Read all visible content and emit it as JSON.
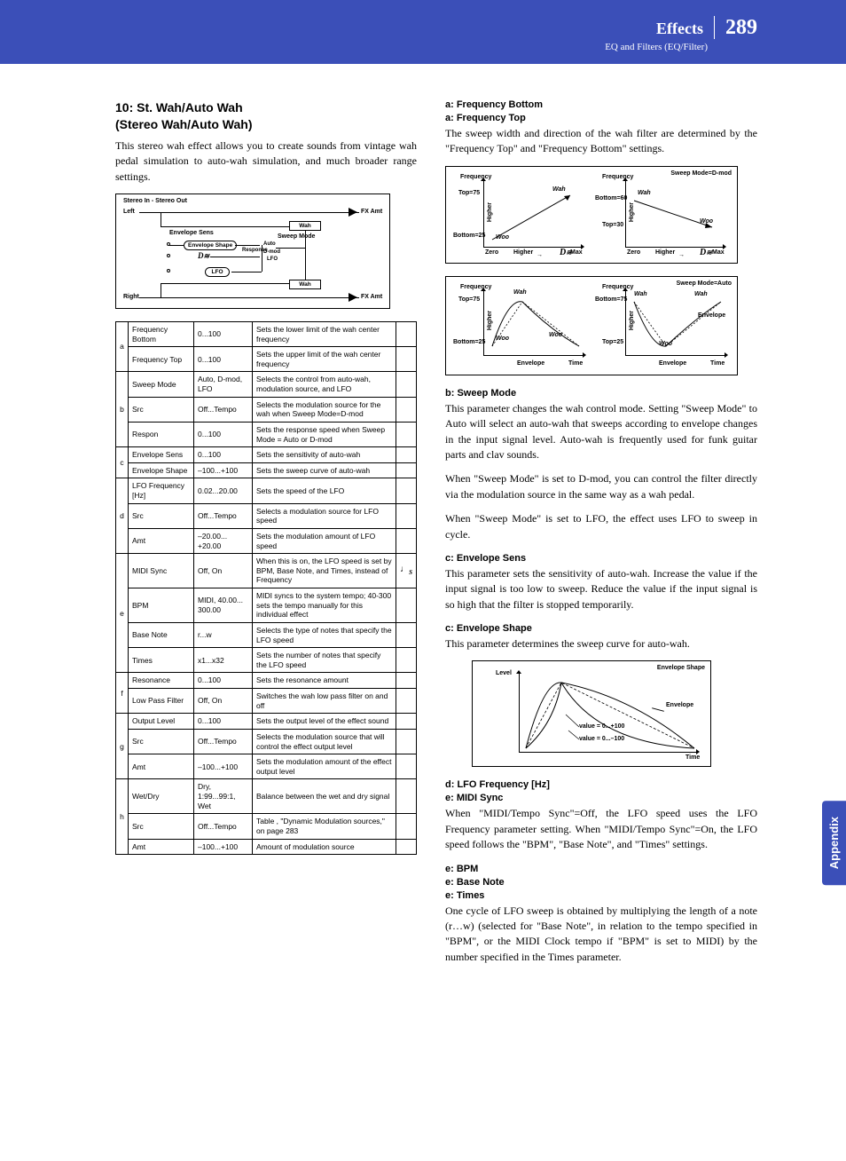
{
  "header": {
    "title": "Effects",
    "page_number": "289",
    "subtitle": "EQ and Filters (EQ/Filter)"
  },
  "sidetab": "Appendix",
  "left": {
    "section_title": "10: St. Wah/Auto Wah\n(Stereo Wah/Auto Wah)",
    "intro": "This stereo wah effect allows you to create sounds from vintage wah pedal simulation to auto-wah simulation, and much broader range settings.",
    "sigflow": {
      "title": "Stereo In - Stereo Out",
      "left": "Left",
      "right": "Right",
      "fxamt": "FX Amt",
      "wah": "Wah",
      "env_sens": "Envelope Sens",
      "env_shape": "Envelope Shape",
      "response": "Response",
      "sweep_mode": "Sweep Mode",
      "auto": "Auto",
      "dmod": "D-mod",
      "lfo_sw": "LFO",
      "lfo_box": "LFO"
    },
    "table": [
      {
        "g": "a",
        "rows": [
          {
            "name": "Frequency Bottom",
            "range": "0...100",
            "desc": "Sets the lower limit of the wah center frequency",
            "icon": ""
          },
          {
            "name": "Frequency Top",
            "range": "0...100",
            "desc": "Sets the upper limit of the wah center frequency",
            "icon": ""
          }
        ]
      },
      {
        "g": "b",
        "rows": [
          {
            "name": "Sweep Mode",
            "range": "Auto, D-mod, LFO",
            "desc": "Selects the control from auto-wah, modulation source, and LFO",
            "icon": ""
          },
          {
            "name": "Src",
            "range": "Off...Tempo",
            "desc": "Selects the modulation source for the wah when Sweep Mode=D-mod",
            "icon": ""
          },
          {
            "name": "Respon",
            "range": "0...100",
            "desc": "Sets the response speed when Sweep Mode = Auto or D-mod",
            "icon": ""
          }
        ]
      },
      {
        "g": "c",
        "rows": [
          {
            "name": "Envelope Sens",
            "range": "0...100",
            "desc": "Sets the sensitivity of auto-wah",
            "icon": ""
          },
          {
            "name": "Envelope Shape",
            "range": "–100...+100",
            "desc": "Sets the sweep curve of auto-wah",
            "icon": ""
          }
        ]
      },
      {
        "g": "d",
        "rows": [
          {
            "name": "LFO Frequency [Hz]",
            "range": "0.02...20.00",
            "desc": "Sets the speed of the LFO",
            "icon": ""
          },
          {
            "name": "Src",
            "range": "Off...Tempo",
            "desc": "Selects a modulation source for LFO speed",
            "icon": ""
          },
          {
            "name": "Amt",
            "range": "–20.00...\n+20.00",
            "desc": "Sets the modulation amount of LFO speed",
            "icon": ""
          }
        ]
      },
      {
        "g": "e",
        "rows": [
          {
            "name": "MIDI Sync",
            "range": "Off, On",
            "desc": "When this is on, the LFO speed is set by BPM, Base Note, and Times, instead of Frequency",
            "icon": "sync"
          },
          {
            "name": "BPM",
            "range": "MIDI, 40.00... 300.00",
            "desc": "MIDI syncs to the system tempo; 40-300 sets the tempo manually for this individual effect",
            "icon": ""
          },
          {
            "name": "Base Note",
            "range": "r...w",
            "desc": "Selects the type of notes that specify the LFO speed",
            "icon": ""
          },
          {
            "name": "Times",
            "range": "x1...x32",
            "desc": "Sets the number of notes that specify the LFO speed",
            "icon": ""
          }
        ]
      },
      {
        "g": "f",
        "rows": [
          {
            "name": "Resonance",
            "range": "0...100",
            "desc": "Sets the resonance amount",
            "icon": ""
          },
          {
            "name": "Low Pass Filter",
            "range": "Off, On",
            "desc": "Switches the wah low pass filter on and off",
            "icon": ""
          }
        ]
      },
      {
        "g": "g",
        "rows": [
          {
            "name": "Output Level",
            "range": "0...100",
            "desc": "Sets the output level of the effect sound",
            "icon": ""
          },
          {
            "name": "Src",
            "range": "Off...Tempo",
            "desc": "Selects the modulation source that will control the effect output level",
            "icon": ""
          },
          {
            "name": "Amt",
            "range": "–100...+100",
            "desc": "Sets the modulation amount of the effect output level",
            "icon": ""
          }
        ]
      },
      {
        "g": "h",
        "rows": [
          {
            "name": "Wet/Dry",
            "range": "Dry, 1:99...99:1, Wet",
            "desc": "Balance between the wet and dry signal",
            "icon": ""
          },
          {
            "name": "Src",
            "range": "Off...Tempo",
            "desc": "Table , \"Dynamic Modulation sources,\" on page 283",
            "icon": ""
          },
          {
            "name": "Amt",
            "range": "–100...+100",
            "desc": "Amount of modulation source",
            "icon": ""
          }
        ]
      }
    ]
  },
  "right": {
    "h_freq_bottom": "a: Frequency Bottom",
    "h_freq_top": "a: Frequency Top",
    "p_freq": "The sweep width and direction of the wah filter are determined by the \"Frequency Top\" and \"Frequency Bottom\" settings.",
    "chart1": {
      "mode_label": "Sweep Mode=D-mod",
      "frequency": "Frequency",
      "top75": "Top=75",
      "bottom25": "Bottom=25",
      "bottom60": "Bottom=60",
      "top30": "Top=30",
      "wah": "Wah",
      "woo": "Woo",
      "higher": "Higher",
      "zero": "Zero",
      "max": "Max",
      "dmod": "D"
    },
    "chart2": {
      "mode_label": "Sweep Mode=Auto",
      "frequency": "Frequency",
      "top75": "Top=75",
      "bottom25": "Bottom=25",
      "bottom75": "Bottom=75",
      "top25": "Top=25",
      "wah": "Wah",
      "woo": "Woo",
      "envelope": "Envelope",
      "time": "Time"
    },
    "h_sweep": "b: Sweep Mode",
    "p_sweep1": "This parameter changes the wah control mode. Setting \"Sweep Mode\" to Auto will select an auto-wah that sweeps according to envelope changes in the input signal level. Auto-wah is frequently used for funk guitar parts and clav sounds.",
    "p_sweep2": "When \"Sweep Mode\" is set to D-mod, you can control the filter directly via the modulation source in the same way as a wah pedal.",
    "p_sweep3": "When \"Sweep Mode\" is set to LFO, the effect uses LFO to sweep in cycle.",
    "h_envsens": "c: Envelope Sens",
    "p_envsens": "This parameter sets the sensitivity of auto-wah. Increase the value if the input signal is too low to sweep. Reduce the value if the input signal is so high that the filter is stopped temporarily.",
    "h_envshape": "c: Envelope Shape",
    "p_envshape": "This parameter determines the sweep curve for auto-wah.",
    "chart3": {
      "title": "Envelope Shape",
      "level": "Level",
      "envelope": "Envelope",
      "time": "Time",
      "valpos": "value = 0...+100",
      "valneg": "value = 0...–100"
    },
    "h_lfofreq": "d: LFO Frequency [Hz]",
    "h_midisync": "e: MIDI Sync",
    "p_midisync": "When \"MIDI/Tempo Sync\"=Off, the LFO speed uses the LFO Frequency parameter setting. When \"MIDI/Tempo Sync\"=On, the LFO speed follows the \"BPM\", \"Base Note\", and \"Times\" settings.",
    "h_bpm": "e: BPM",
    "h_basenote": "e: Base Note",
    "h_times": "e: Times",
    "p_times": "One cycle of LFO sweep is obtained by multiplying the length of a note (r…w) (selected for \"Base Note\", in relation to the tempo specified in \"BPM\", or the MIDI Clock tempo if \"BPM\" is set to MIDI) by the number specified in the Times parameter."
  }
}
